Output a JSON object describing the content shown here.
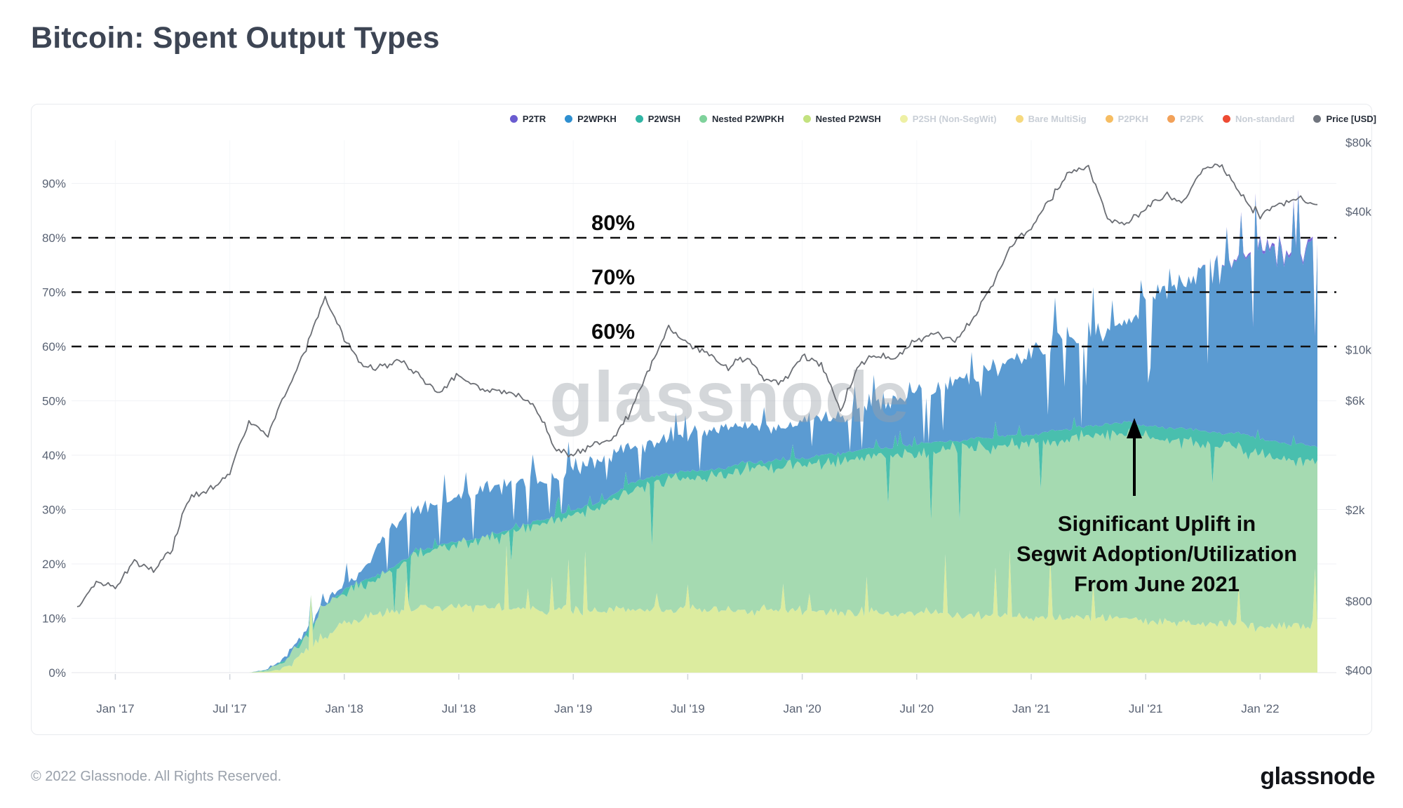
{
  "header": {
    "title": "Bitcoin: Spent Output Types"
  },
  "footer": {
    "copyright": "© 2022 Glassnode. All Rights Reserved.",
    "brand": "glassnode"
  },
  "watermark": "glassnode",
  "annotation": {
    "lines": [
      "Significant Uplift in",
      "Segwit Adoption/Utilization",
      "From June 2021"
    ],
    "arrow": "up-arrow"
  },
  "legend": [
    {
      "label": "P2TR",
      "color": "#6a5cd0",
      "active": true
    },
    {
      "label": "P2WPKH",
      "color": "#2e8fd0",
      "active": true
    },
    {
      "label": "P2WSH",
      "color": "#31b5a5",
      "active": true
    },
    {
      "label": "Nested P2WPKH",
      "color": "#7fd29b",
      "active": true
    },
    {
      "label": "Nested P2WSH",
      "color": "#c3e27f",
      "active": true
    },
    {
      "label": "P2SH (Non-SegWit)",
      "color": "#eef0a4",
      "active": false
    },
    {
      "label": "Bare MultiSig",
      "color": "#f6d97e",
      "active": false
    },
    {
      "label": "P2PKH",
      "color": "#f6bd62",
      "active": false
    },
    {
      "label": "P2PK",
      "color": "#f2a159",
      "active": false
    },
    {
      "label": "Non-standard",
      "color": "#ee4b33",
      "active": false
    },
    {
      "label": "Price [USD]",
      "color": "#70757e",
      "active": true
    }
  ],
  "chart_data": {
    "type": "stacked_area_with_log_price_line",
    "title": "Bitcoin: Spent Output Types",
    "months": [
      "2016-11",
      "2016-12",
      "2017-01",
      "2017-02",
      "2017-03",
      "2017-04",
      "2017-05",
      "2017-06",
      "2017-07",
      "2017-08",
      "2017-09",
      "2017-10",
      "2017-11",
      "2017-12",
      "2018-01",
      "2018-02",
      "2018-03",
      "2018-04",
      "2018-05",
      "2018-06",
      "2018-07",
      "2018-08",
      "2018-09",
      "2018-10",
      "2018-11",
      "2018-12",
      "2019-01",
      "2019-02",
      "2019-03",
      "2019-04",
      "2019-05",
      "2019-06",
      "2019-07",
      "2019-08",
      "2019-09",
      "2019-10",
      "2019-11",
      "2019-12",
      "2020-01",
      "2020-02",
      "2020-03",
      "2020-04",
      "2020-05",
      "2020-06",
      "2020-07",
      "2020-08",
      "2020-09",
      "2020-10",
      "2020-11",
      "2020-12",
      "2021-01",
      "2021-02",
      "2021-03",
      "2021-04",
      "2021-05",
      "2021-06",
      "2021-07",
      "2021-08",
      "2021-09",
      "2021-10",
      "2021-11",
      "2021-12",
      "2022-01",
      "2022-02",
      "2022-03",
      "2022-04"
    ],
    "stack_order": [
      "nested_p2wsh",
      "nested_p2wpkh",
      "p2wsh",
      "p2wpkh",
      "p2tr"
    ],
    "series": [
      {
        "id": "nested_p2wsh",
        "name": "Nested P2WSH",
        "color": "#dcec9f",
        "values": [
          0,
          0,
          0,
          0,
          0,
          0,
          0,
          0,
          0,
          0,
          0.2,
          1,
          4,
          7,
          9,
          10,
          11,
          11.5,
          12,
          12,
          12,
          12,
          12,
          12,
          11.5,
          11.5,
          11.5,
          11.5,
          11.5,
          11.5,
          11.5,
          11.5,
          11.5,
          11.5,
          11.5,
          11.5,
          11.5,
          11.5,
          11.5,
          11,
          11,
          11,
          11,
          11,
          11,
          11,
          10.5,
          10.5,
          10.5,
          10.5,
          10,
          10,
          10,
          10,
          10,
          10,
          9.5,
          9.5,
          9.5,
          9,
          9,
          9,
          8.5,
          8.5,
          8.5,
          8.5
        ]
      },
      {
        "id": "nested_p2wpkh",
        "name": "Nested P2WPKH",
        "color": "#a5dab1",
        "values": [
          0,
          0,
          0,
          0,
          0,
          0,
          0,
          0,
          0,
          0,
          0.3,
          1.5,
          3,
          5,
          6,
          6.5,
          7,
          8.5,
          10,
          11,
          11.5,
          12,
          13,
          14,
          15.5,
          16.5,
          17.5,
          18.5,
          20,
          22.5,
          23.5,
          24,
          24.5,
          24.5,
          25,
          26,
          26,
          26.5,
          26.5,
          27.5,
          28,
          28.5,
          29,
          29,
          29.5,
          30,
          30.5,
          31,
          31,
          31.5,
          32,
          32.5,
          33,
          33.5,
          34,
          34,
          34,
          33.5,
          33,
          33,
          32.5,
          32,
          31.5,
          31,
          30.5,
          30
        ]
      },
      {
        "id": "p2wsh",
        "name": "P2WSH",
        "color": "#49bfae",
        "values": [
          0,
          0,
          0,
          0,
          0,
          0,
          0,
          0,
          0,
          0,
          0,
          0.05,
          0.1,
          0.15,
          0.2,
          0.3,
          0.4,
          0.4,
          0.5,
          0.5,
          0.5,
          0.6,
          0.6,
          0.6,
          0.7,
          0.7,
          0.8,
          0.8,
          0.9,
          1,
          1,
          1,
          1.1,
          1.1,
          1.2,
          1.2,
          1.2,
          1.3,
          1.3,
          1.4,
          1.4,
          1.5,
          1.5,
          1.5,
          1.6,
          1.6,
          1.6,
          1.7,
          1.7,
          1.7,
          1.8,
          1.8,
          1.8,
          1.9,
          1.9,
          2,
          2,
          2,
          2.5,
          2.5,
          2.5,
          3,
          3,
          3,
          3,
          3
        ]
      },
      {
        "id": "p2wpkh",
        "name": "P2WPKH",
        "color": "#5b9bd2",
        "values": [
          0,
          0,
          0,
          0,
          0,
          0,
          0,
          0,
          0,
          0,
          0.1,
          0.45,
          0.9,
          0.85,
          0.8,
          1.7,
          6.6,
          8.1,
          8,
          7.5,
          8,
          8.4,
          8.4,
          8.4,
          7.8,
          7.3,
          8.2,
          8.2,
          7.6,
          6,
          6,
          6.5,
          6.9,
          7.4,
          7.3,
          6.3,
          6.8,
          6.2,
          6.7,
          7.1,
          7.1,
          7,
          7.5,
          8.5,
          8.9,
          9.9,
          10.9,
          11.3,
          12.8,
          13.8,
          15.2,
          16.2,
          16.7,
          16.6,
          17.1,
          18.5,
          22,
          25,
          27,
          29.5,
          30.9,
          31.7,
          34,
          34.5,
          35.5,
          36
        ]
      },
      {
        "id": "p2tr",
        "name": "P2TR",
        "color": "#7b68d8",
        "values": [
          0,
          0,
          0,
          0,
          0,
          0,
          0,
          0,
          0,
          0,
          0,
          0,
          0,
          0,
          0,
          0,
          0,
          0,
          0,
          0,
          0,
          0,
          0,
          0,
          0,
          0,
          0,
          0,
          0,
          0,
          0,
          0,
          0,
          0,
          0,
          0,
          0,
          0,
          0,
          0,
          0,
          0,
          0,
          0,
          0,
          0,
          0,
          0,
          0,
          0,
          0,
          0,
          0,
          0,
          0,
          0,
          0,
          0,
          0,
          0.05,
          0.1,
          0.3,
          0.5,
          0.5,
          0.5,
          0.5
        ]
      }
    ],
    "price": {
      "name": "Price [USD]",
      "color": "#6b6e74",
      "scale": "log",
      "values": [
        745,
        960,
        920,
        1190,
        1080,
        1350,
        2300,
        2450,
        2870,
        4700,
        4340,
        6450,
        9900,
        16500,
        11000,
        8500,
        8500,
        8900,
        7500,
        6400,
        7700,
        6800,
        6600,
        6400,
        5600,
        3700,
        3450,
        3800,
        4000,
        5200,
        8200,
        12500,
        10500,
        9600,
        8300,
        9200,
        7500,
        7200,
        9300,
        8600,
        5300,
        8600,
        9500,
        9100,
        11000,
        11700,
        10800,
        13800,
        19400,
        28900,
        33500,
        45000,
        58800,
        61000,
        37000,
        35000,
        41500,
        47000,
        43800,
        61300,
        64000,
        46200,
        38500,
        43200,
        45500,
        42500
      ]
    },
    "left_axis": {
      "unit": "%",
      "ticks": [
        {
          "v": 0,
          "label": "0%"
        },
        {
          "v": 10,
          "label": "10%"
        },
        {
          "v": 20,
          "label": "20%"
        },
        {
          "v": 30,
          "label": "30%"
        },
        {
          "v": 40,
          "label": "40%"
        },
        {
          "v": 50,
          "label": "50%"
        },
        {
          "v": 60,
          "label": "60%"
        },
        {
          "v": 70,
          "label": "70%"
        },
        {
          "v": 80,
          "label": "80%"
        },
        {
          "v": 90,
          "label": "90%"
        }
      ]
    },
    "right_axis": {
      "unit": "USD",
      "ticks": [
        {
          "value": 80000,
          "label": "$80k"
        },
        {
          "value": 40000,
          "label": "$40k"
        },
        {
          "value": 10000,
          "label": "$10k"
        },
        {
          "value": 6000,
          "label": "$6k"
        },
        {
          "value": 2000,
          "label": "$2k"
        },
        {
          "value": 800,
          "label": "$800"
        },
        {
          "value": 400,
          "label": "$400"
        }
      ]
    },
    "x_ticks": [
      {
        "label": "Jan '17",
        "m": 2
      },
      {
        "label": "Jul '17",
        "m": 8
      },
      {
        "label": "Jan '18",
        "m": 14
      },
      {
        "label": "Jul '18",
        "m": 20
      },
      {
        "label": "Jan '19",
        "m": 26
      },
      {
        "label": "Jul '19",
        "m": 32
      },
      {
        "label": "Jan '20",
        "m": 38
      },
      {
        "label": "Jul '20",
        "m": 44
      },
      {
        "label": "Jan '21",
        "m": 50
      },
      {
        "label": "Jul '21",
        "m": 56
      },
      {
        "label": "Jan '22",
        "m": 62
      }
    ],
    "dashed_levels": [
      {
        "pct": 80,
        "label": "80%"
      },
      {
        "pct": 70,
        "label": "70%"
      },
      {
        "pct": 60,
        "label": "60%"
      }
    ],
    "grid": true,
    "legend_position": "top-right",
    "noise_pct": {
      "nested_p2wsh_top": 2.5,
      "nested_p2wpkh_top": 2.5,
      "p2wsh_top": 0.8,
      "p2wpkh_top": 4,
      "price_rel": 0.035
    }
  }
}
